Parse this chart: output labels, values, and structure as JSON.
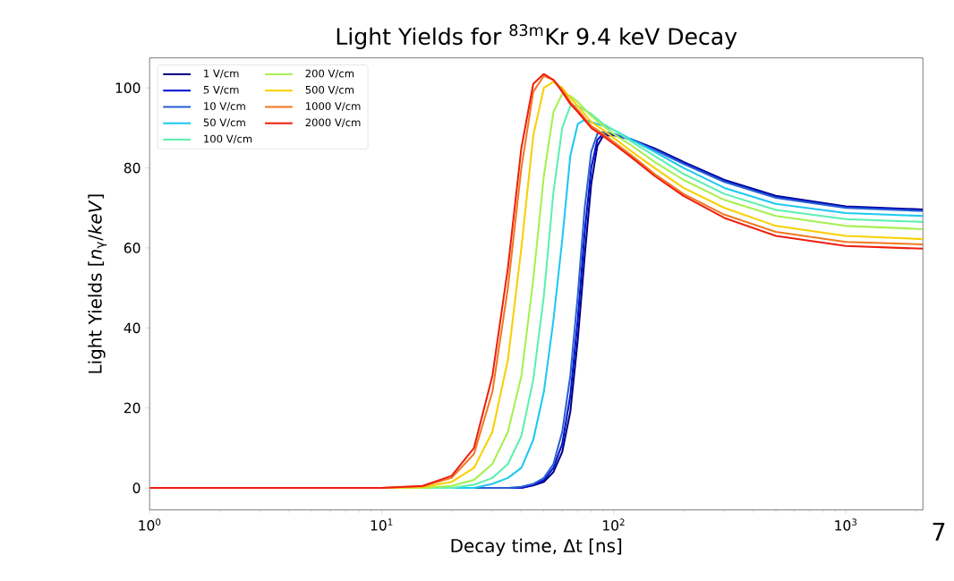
{
  "chart_data": {
    "type": "line",
    "title": "Light Yields for $^{83m}$Kr 9.4 keV Decay",
    "xlabel": "Decay time, Δt [ns]",
    "ylabel": "Light Yields [*n*$_{γ}$/*keV*]",
    "log": "x",
    "xlim": [
      1,
      2150
    ],
    "ylim": [
      -5.5,
      107.5
    ],
    "xticks": [
      {
        "value": 1,
        "label": "10$^{0}$"
      },
      {
        "value": 10,
        "label": "10$^{1}$"
      },
      {
        "value": 100,
        "label": "10$^{2}$"
      },
      {
        "value": 1000,
        "label": "10$^{3}$"
      }
    ],
    "yticks": [
      0,
      20,
      40,
      60,
      80,
      100
    ],
    "grid": false,
    "legend": "top left",
    "annotations": [
      "7"
    ],
    "series": [
      {
        "name": "1 V/cm",
        "color": "#000080",
        "x": [
          1,
          10,
          40,
          45,
          50,
          55,
          60,
          65,
          70,
          75,
          80,
          85,
          90,
          100,
          120,
          150,
          200,
          300,
          500,
          1000,
          2150
        ],
        "values": [
          0,
          0,
          0,
          0.6,
          1.5,
          4,
          9,
          19,
          37,
          58,
          76,
          85.5,
          88,
          88.2,
          87.1,
          84.9,
          81.5,
          77,
          73,
          70.4,
          69.6
        ]
      },
      {
        "name": "5 V/cm",
        "color": "#0010d0",
        "x": [
          1,
          10,
          40,
          45,
          50,
          55,
          60,
          65,
          70,
          75,
          80,
          85,
          90,
          100,
          120,
          150,
          200,
          300,
          500,
          1000,
          2150
        ],
        "values": [
          0,
          0,
          0,
          0.8,
          2,
          5,
          11,
          23,
          42,
          64,
          80,
          87,
          88.5,
          88.3,
          87,
          84.7,
          81.3,
          76.8,
          72.8,
          70.2,
          69.4
        ]
      },
      {
        "name": "10 V/cm",
        "color": "#2a62d0",
        "x": [
          1,
          10,
          35,
          40,
          45,
          50,
          55,
          60,
          65,
          70,
          75,
          80,
          85,
          90,
          100,
          120,
          150,
          200,
          300,
          500,
          1000,
          2150
        ],
        "values": [
          0,
          0,
          0,
          0.3,
          1,
          2.5,
          6,
          14,
          28,
          48,
          70,
          84,
          88.5,
          89,
          88.5,
          87,
          84.5,
          81,
          76.5,
          72.5,
          70,
          69.2
        ]
      },
      {
        "name": "50 V/cm",
        "color": "#1ec8f0",
        "x": [
          1,
          10,
          25,
          30,
          35,
          40,
          45,
          50,
          55,
          60,
          65,
          70,
          75,
          80,
          90,
          100,
          120,
          150,
          200,
          300,
          500,
          1000,
          2150
        ],
        "values": [
          0,
          0,
          0,
          1,
          2.5,
          5,
          12,
          24,
          42,
          62,
          83,
          91,
          92,
          91.5,
          90.5,
          89.5,
          87,
          84,
          80,
          75,
          71,
          68.7,
          68
        ]
      },
      {
        "name": "100 V/cm",
        "color": "#5cf0b0",
        "x": [
          1,
          10,
          20,
          25,
          30,
          35,
          40,
          45,
          50,
          55,
          60,
          65,
          70,
          80,
          90,
          100,
          120,
          150,
          200,
          300,
          500,
          1000,
          2150
        ],
        "values": [
          0,
          0,
          0,
          0.8,
          2.5,
          6,
          13,
          27,
          48,
          74,
          90,
          95.5,
          95.5,
          93.5,
          91,
          89.5,
          86.5,
          83,
          78.5,
          73.5,
          69.5,
          67.2,
          66.5
        ]
      },
      {
        "name": "200 V/cm",
        "color": "#a6f050",
        "x": [
          1,
          10,
          15,
          20,
          25,
          30,
          35,
          40,
          45,
          50,
          55,
          60,
          65,
          70,
          80,
          90,
          100,
          120,
          150,
          200,
          300,
          500,
          1000,
          2150
        ],
        "values": [
          0,
          0,
          0,
          0.5,
          2,
          6,
          14,
          28,
          52,
          78,
          94,
          98.5,
          98,
          96.5,
          93,
          90.5,
          88.5,
          85.5,
          81.5,
          77,
          72,
          68,
          65.5,
          64.7
        ]
      },
      {
        "name": "500 V/cm",
        "color": "#f8d000",
        "x": [
          1,
          10,
          15,
          20,
          25,
          30,
          35,
          40,
          45,
          50,
          55,
          60,
          65,
          70,
          80,
          90,
          100,
          120,
          150,
          200,
          300,
          500,
          1000,
          2150
        ],
        "values": [
          0,
          0,
          0.2,
          1.5,
          5,
          14,
          32,
          60,
          88,
          100,
          101.5,
          100,
          97.5,
          95.5,
          91.5,
          89.5,
          87.5,
          84,
          80,
          75,
          70,
          65.5,
          63,
          62.2
        ]
      },
      {
        "name": "1000 V/cm",
        "color": "#f07820",
        "x": [
          1,
          10,
          15,
          20,
          25,
          30,
          35,
          40,
          45,
          50,
          55,
          60,
          65,
          70,
          80,
          90,
          100,
          120,
          150,
          200,
          300,
          500,
          1000,
          2150
        ],
        "values": [
          0,
          0,
          0.4,
          2.5,
          8.5,
          24,
          50,
          80,
          99,
          103,
          102,
          99.5,
          96.5,
          94.5,
          90.5,
          88.5,
          86.5,
          83,
          78.5,
          73.5,
          68.3,
          64,
          61.5,
          60.9
        ]
      },
      {
        "name": "2000 V/cm",
        "color": "#ee2010",
        "x": [
          1,
          10,
          15,
          20,
          25,
          30,
          35,
          40,
          45,
          50,
          55,
          60,
          65,
          70,
          80,
          90,
          100,
          120,
          150,
          200,
          300,
          500,
          1000,
          2150
        ],
        "values": [
          0,
          0,
          0.5,
          3,
          10,
          28,
          55,
          85,
          101,
          103.5,
          102,
          99,
          96,
          94,
          90,
          88,
          86,
          82.5,
          78,
          73,
          67.5,
          63,
          60.5,
          59.8
        ]
      }
    ]
  }
}
